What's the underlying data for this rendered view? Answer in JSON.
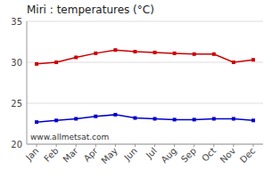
{
  "chart_data": {
    "type": "line",
    "title": "Miri : temperatures (°C)",
    "categories": [
      "Jan",
      "Feb",
      "Mar",
      "Apr",
      "May",
      "Jun",
      "Jul",
      "Aug",
      "Sep",
      "Oct",
      "Nov",
      "Dec"
    ],
    "series": [
      {
        "color": "#cc0000",
        "marker": "square",
        "values": [
          29.8,
          30.0,
          30.6,
          31.1,
          31.5,
          31.3,
          31.2,
          31.1,
          31.0,
          31.0,
          30.0,
          30.3
        ]
      },
      {
        "color": "#0000cc",
        "marker": "square",
        "values": [
          22.7,
          22.9,
          23.1,
          23.4,
          23.6,
          23.2,
          23.1,
          23.0,
          23.0,
          23.1,
          23.1,
          22.9
        ]
      }
    ],
    "ylim": [
      20,
      35
    ],
    "yticks": [
      20,
      25,
      30,
      35
    ],
    "grid": true,
    "annotation": "www.allmetsat.com"
  }
}
